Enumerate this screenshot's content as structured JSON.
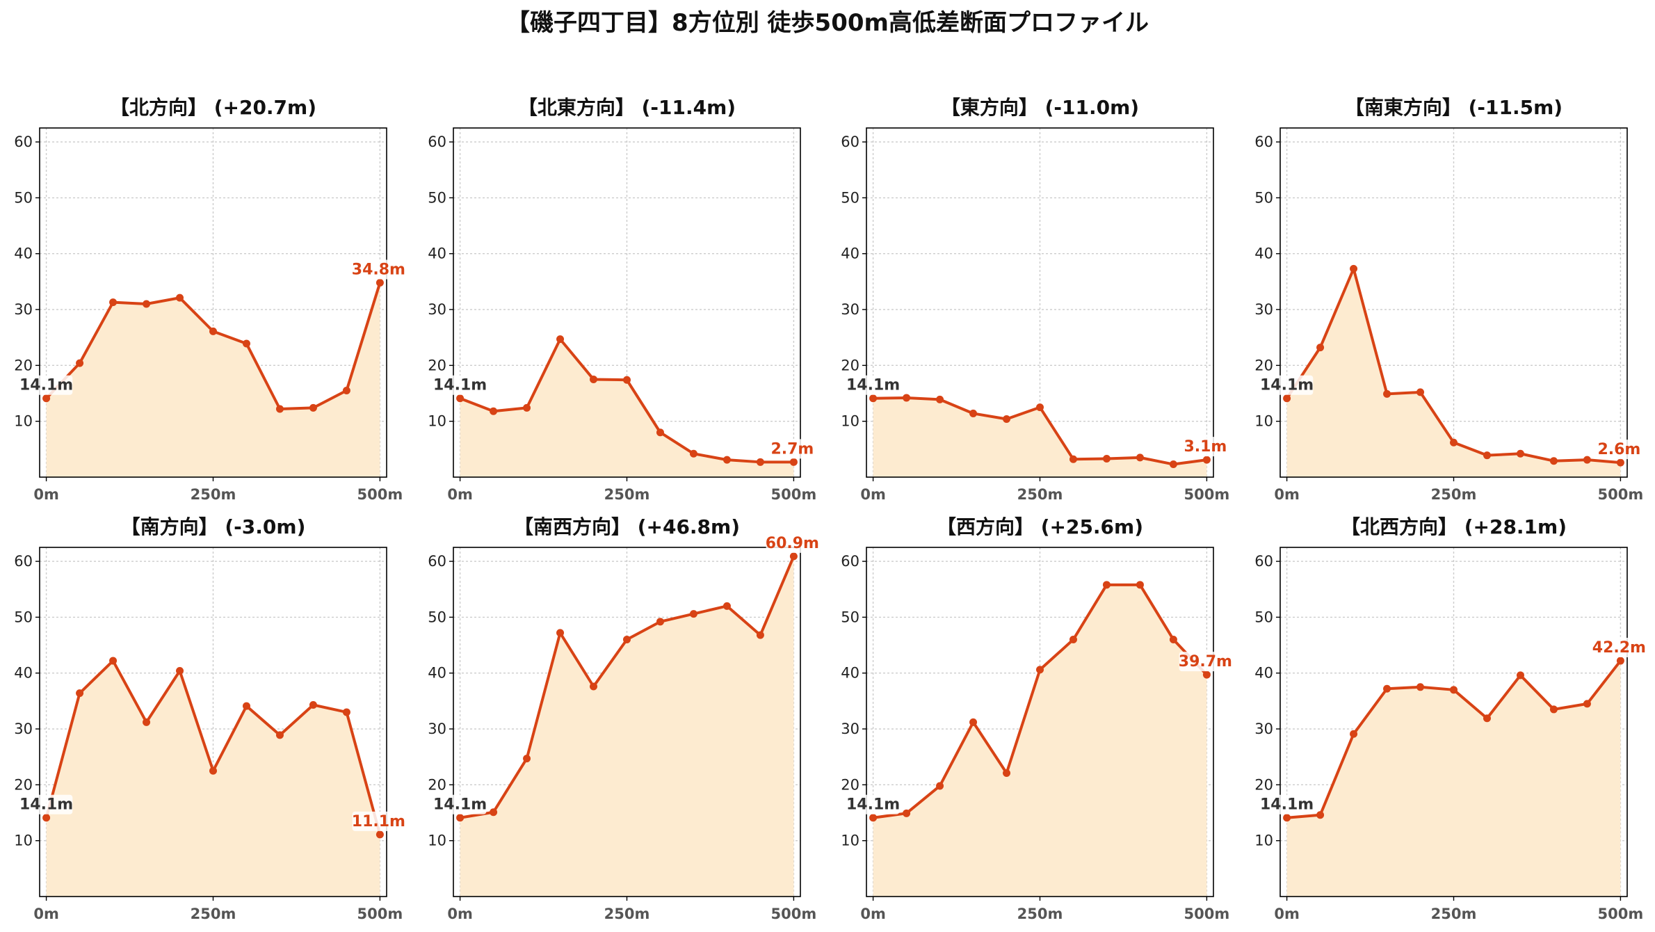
{
  "title": "【磯子四丁目】8方位別 徒歩500m高低差断面プロファイル",
  "colors": {
    "line": "#d84315",
    "fill": "#fdebd0",
    "start_label": "#333333",
    "end_label": "#d84315"
  },
  "chart_data": [
    {
      "type": "area",
      "title": "【北方向】 (+20.7m)",
      "x": [
        0,
        50,
        100,
        150,
        200,
        250,
        300,
        350,
        400,
        450,
        500
      ],
      "values": [
        14.1,
        20.4,
        31.3,
        31.0,
        32.1,
        26.1,
        23.9,
        12.2,
        12.4,
        15.5,
        34.8
      ],
      "xticks": [
        "0m",
        "250m",
        "500m"
      ],
      "yticks": [
        10,
        20,
        30,
        40,
        50,
        60
      ],
      "ylim": [
        0,
        62.5
      ],
      "xlim": [
        -10,
        510
      ],
      "start_label": "14.1m",
      "end_label": "34.8m",
      "grid": true
    },
    {
      "type": "area",
      "title": "【北東方向】 (-11.4m)",
      "x": [
        0,
        50,
        100,
        150,
        200,
        250,
        300,
        350,
        400,
        450,
        500
      ],
      "values": [
        14.1,
        11.8,
        12.4,
        24.7,
        17.5,
        17.4,
        8.0,
        4.2,
        3.1,
        2.7,
        2.7
      ],
      "xticks": [
        "0m",
        "250m",
        "500m"
      ],
      "yticks": [
        10,
        20,
        30,
        40,
        50,
        60
      ],
      "ylim": [
        0,
        62.5
      ],
      "xlim": [
        -10,
        510
      ],
      "start_label": "14.1m",
      "end_label": "2.7m",
      "grid": true
    },
    {
      "type": "area",
      "title": "【東方向】 (-11.0m)",
      "x": [
        0,
        50,
        100,
        150,
        200,
        250,
        300,
        350,
        400,
        450,
        500
      ],
      "values": [
        14.1,
        14.2,
        13.9,
        11.4,
        10.4,
        12.5,
        3.2,
        3.3,
        3.5,
        2.3,
        3.1
      ],
      "xticks": [
        "0m",
        "250m",
        "500m"
      ],
      "yticks": [
        10,
        20,
        30,
        40,
        50,
        60
      ],
      "ylim": [
        0,
        62.5
      ],
      "xlim": [
        -10,
        510
      ],
      "start_label": "14.1m",
      "end_label": "3.1m",
      "grid": true
    },
    {
      "type": "area",
      "title": "【南東方向】 (-11.5m)",
      "x": [
        0,
        50,
        100,
        150,
        200,
        250,
        300,
        350,
        400,
        450,
        500
      ],
      "values": [
        14.1,
        23.2,
        37.3,
        14.9,
        15.2,
        6.2,
        3.9,
        4.2,
        2.9,
        3.1,
        2.6
      ],
      "xticks": [
        "0m",
        "250m",
        "500m"
      ],
      "yticks": [
        10,
        20,
        30,
        40,
        50,
        60
      ],
      "ylim": [
        0,
        62.5
      ],
      "xlim": [
        -10,
        510
      ],
      "start_label": "14.1m",
      "end_label": "2.6m",
      "grid": true
    },
    {
      "type": "area",
      "title": "【南方向】 (-3.0m)",
      "x": [
        0,
        50,
        100,
        150,
        200,
        250,
        300,
        350,
        400,
        450,
        500
      ],
      "values": [
        14.1,
        36.4,
        42.2,
        31.2,
        40.4,
        22.5,
        34.1,
        28.9,
        34.3,
        33.0,
        11.1
      ],
      "xticks": [
        "0m",
        "250m",
        "500m"
      ],
      "yticks": [
        10,
        20,
        30,
        40,
        50,
        60
      ],
      "ylim": [
        0,
        62.5
      ],
      "xlim": [
        -10,
        510
      ],
      "start_label": "14.1m",
      "end_label": "11.1m",
      "grid": true
    },
    {
      "type": "area",
      "title": "【南西方向】 (+46.8m)",
      "x": [
        0,
        50,
        100,
        150,
        200,
        250,
        300,
        350,
        400,
        450,
        500
      ],
      "values": [
        14.1,
        15.1,
        24.7,
        47.2,
        37.6,
        46.0,
        49.2,
        50.6,
        52.0,
        46.8,
        60.9
      ],
      "xticks": [
        "0m",
        "250m",
        "500m"
      ],
      "yticks": [
        10,
        20,
        30,
        40,
        50,
        60
      ],
      "ylim": [
        0,
        62.5
      ],
      "xlim": [
        -10,
        510
      ],
      "start_label": "14.1m",
      "end_label": "60.9m",
      "grid": true
    },
    {
      "type": "area",
      "title": "【西方向】 (+25.6m)",
      "x": [
        0,
        50,
        100,
        150,
        200,
        250,
        300,
        350,
        400,
        450,
        500
      ],
      "values": [
        14.1,
        14.9,
        19.8,
        31.2,
        22.1,
        40.6,
        46.0,
        55.8,
        55.8,
        46.0,
        39.7
      ],
      "xticks": [
        "0m",
        "250m",
        "500m"
      ],
      "yticks": [
        10,
        20,
        30,
        40,
        50,
        60
      ],
      "ylim": [
        0,
        62.5
      ],
      "xlim": [
        -10,
        510
      ],
      "start_label": "14.1m",
      "end_label": "39.7m",
      "grid": true
    },
    {
      "type": "area",
      "title": "【北西方向】 (+28.1m)",
      "x": [
        0,
        50,
        100,
        150,
        200,
        250,
        300,
        350,
        400,
        450,
        500
      ],
      "values": [
        14.1,
        14.6,
        29.1,
        37.2,
        37.5,
        37.0,
        31.9,
        39.6,
        33.5,
        34.5,
        42.2
      ],
      "xticks": [
        "0m",
        "250m",
        "500m"
      ],
      "yticks": [
        10,
        20,
        30,
        40,
        50,
        60
      ],
      "ylim": [
        0,
        62.5
      ],
      "xlim": [
        -10,
        510
      ],
      "start_label": "14.1m",
      "end_label": "42.2m",
      "grid": true
    }
  ]
}
